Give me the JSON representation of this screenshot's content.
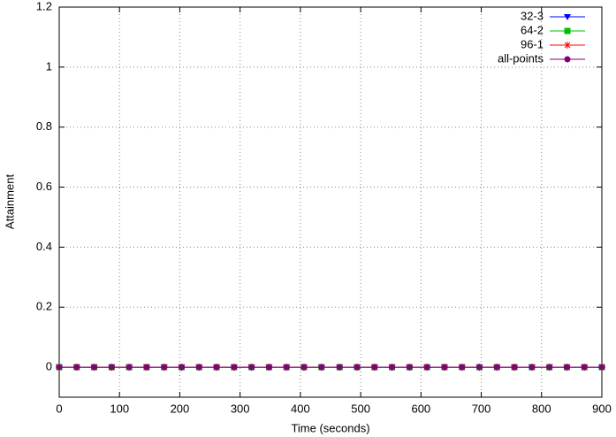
{
  "chart_data": {
    "type": "line",
    "xlabel": "Time (seconds)",
    "ylabel": "Attainment",
    "x": [
      0,
      29,
      58,
      87,
      116,
      145,
      174,
      203,
      232,
      261,
      290,
      319,
      348,
      377,
      406,
      435,
      465,
      494,
      523,
      552,
      581,
      610,
      639,
      668,
      697,
      726,
      755,
      784,
      813,
      842,
      871,
      900
    ],
    "series": [
      {
        "name": "32-3",
        "color": "#0000ff",
        "marker": "triangle-down",
        "values": [
          0,
          0,
          0,
          0,
          0,
          0,
          0,
          0,
          0,
          0,
          0,
          0,
          0,
          0,
          0,
          0,
          0,
          0,
          0,
          0,
          0,
          0,
          0,
          0,
          0,
          0,
          0,
          0,
          0,
          0,
          0,
          0
        ]
      },
      {
        "name": "64-2",
        "color": "#00c000",
        "marker": "square",
        "values": [
          0,
          0,
          0,
          0,
          0,
          0,
          0,
          0,
          0,
          0,
          0,
          0,
          0,
          0,
          0,
          0,
          0,
          0,
          0,
          0,
          0,
          0,
          0,
          0,
          0,
          0,
          0,
          0,
          0,
          0,
          0,
          0
        ]
      },
      {
        "name": "96-1",
        "color": "#ff0000",
        "marker": "asterisk",
        "values": [
          0,
          0,
          0,
          0,
          0,
          0,
          0,
          0,
          0,
          0,
          0,
          0,
          0,
          0,
          0,
          0,
          0,
          0,
          0,
          0,
          0,
          0,
          0,
          0,
          0,
          0,
          0,
          0,
          0,
          0,
          0,
          0
        ]
      },
      {
        "name": "all-points",
        "color": "#800080",
        "marker": "circle",
        "values": [
          0,
          0,
          0,
          0,
          0,
          0,
          0,
          0,
          0,
          0,
          0,
          0,
          0,
          0,
          0,
          0,
          0,
          0,
          0,
          0,
          0,
          0,
          0,
          0,
          0,
          0,
          0,
          0,
          0,
          0,
          0,
          0
        ]
      }
    ],
    "xlim": [
      0,
      900
    ],
    "xticks": [
      0,
      100,
      200,
      300,
      400,
      500,
      600,
      700,
      800,
      900
    ],
    "ylim": [
      -0.1,
      1.2
    ],
    "yticks": [
      0,
      0.2,
      0.4,
      0.6,
      0.8,
      1,
      1.2
    ],
    "grid": true,
    "legend": "top-right"
  }
}
